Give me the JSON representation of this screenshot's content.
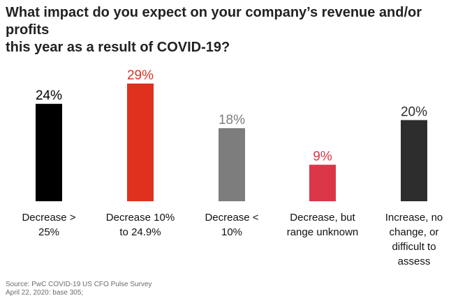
{
  "title_lines": [
    "What impact do you expect on your company’s revenue and/or profits",
    "this year as a result of COVID-19?"
  ],
  "chart_data": {
    "type": "bar",
    "title": "What impact do you expect on your company’s revenue and/or profits this year as a result of COVID-19?",
    "categories": [
      "Decrease > 25%",
      "Decrease 10% to 24.9%",
      "Decrease < 10%",
      "Decrease, but range unknown",
      "Increase, no change, or difficult to assess"
    ],
    "category_lines": [
      [
        "Decrease >",
        "25%"
      ],
      [
        "Decrease 10%",
        "to 24.9%"
      ],
      [
        "Decrease <",
        "10%"
      ],
      [
        "Decrease, but",
        "range unknown"
      ],
      [
        "Increase, no",
        "change, or",
        "difficult to",
        "assess"
      ]
    ],
    "values": [
      24,
      29,
      18,
      9,
      20
    ],
    "value_labels": [
      "24%",
      "29%",
      "18%",
      "9%",
      "20%"
    ],
    "bar_colors": [
      "#000000",
      "#e0301e",
      "#7d7d7d",
      "#db3648",
      "#2d2d2d"
    ],
    "label_colors": [
      "#000000",
      "#e0301e",
      "#7d7d7d",
      "#db3648",
      "#2d2d2d"
    ],
    "xlabel": "",
    "ylabel": "",
    "ylim": [
      0,
      29
    ],
    "grid": false,
    "legend": "none"
  },
  "source_lines": [
    "Source: PwC COVID-19 US CFO Pulse Survey",
    "April 22, 2020: base 305;"
  ]
}
